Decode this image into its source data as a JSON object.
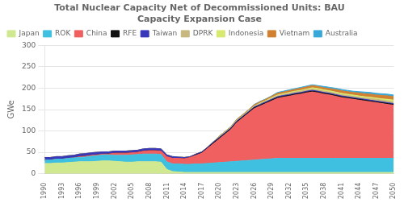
{
  "chart_data": {
    "type": "area",
    "stacked": true,
    "title": "Total Nuclear Capacity Net of Decommissioned Units: BAU\nCapacity Expansion Case",
    "ylabel": "GWe",
    "x": [
      1990,
      1991,
      1992,
      1993,
      1994,
      1995,
      1996,
      1997,
      1998,
      1999,
      2000,
      2001,
      2002,
      2003,
      2004,
      2005,
      2006,
      2007,
      2008,
      2009,
      2010,
      2011,
      2012,
      2013,
      2014,
      2015,
      2016,
      2017,
      2018,
      2019,
      2020,
      2021,
      2022,
      2023,
      2024,
      2025,
      2026,
      2027,
      2028,
      2029,
      2030,
      2031,
      2032,
      2033,
      2034,
      2035,
      2036,
      2037,
      2038,
      2039,
      2040,
      2041,
      2042,
      2043,
      2044,
      2045,
      2046,
      2047,
      2048,
      2049,
      2050
    ],
    "series": [
      {
        "name": "Japan",
        "color": "#d0e890",
        "values": [
          24,
          24,
          25,
          25,
          26,
          27,
          28,
          28,
          28,
          29,
          30,
          30,
          29,
          28,
          27,
          27,
          28,
          28,
          28,
          28,
          27,
          10,
          5,
          4,
          3,
          3,
          3,
          3,
          3,
          3,
          3,
          3,
          3,
          3,
          3,
          3,
          3,
          3,
          3,
          3,
          3,
          3,
          3,
          3,
          3,
          3,
          3,
          3,
          3,
          3,
          3,
          3,
          3,
          3,
          3,
          3,
          3,
          3,
          3,
          3,
          3
        ]
      },
      {
        "name": "ROK",
        "color": "#40c0e0",
        "values": [
          8,
          8,
          9,
          9,
          10,
          10,
          10,
          11,
          13,
          13,
          14,
          14,
          14,
          15,
          16,
          17,
          17,
          18,
          18,
          18,
          18,
          18,
          18,
          19,
          19,
          19,
          20,
          20,
          21,
          22,
          23,
          24,
          25,
          26,
          27,
          28,
          29,
          30,
          31,
          32,
          33,
          33,
          33,
          33,
          33,
          33,
          33,
          33,
          33,
          33,
          33,
          33,
          33,
          33,
          33,
          33,
          33,
          33,
          33,
          33,
          33
        ]
      },
      {
        "name": "China",
        "color": "#f06060",
        "values": [
          0,
          0,
          0,
          0,
          0,
          0,
          2,
          2,
          2,
          2,
          2,
          2,
          5,
          5,
          5,
          5,
          5,
          7,
          8,
          8,
          8,
          12,
          13,
          13,
          13,
          16,
          20,
          25,
          35,
          45,
          55,
          65,
          75,
          90,
          100,
          110,
          120,
          125,
          130,
          135,
          140,
          143,
          145,
          148,
          150,
          153,
          155,
          153,
          150,
          148,
          145,
          142,
          140,
          138,
          136,
          134,
          132,
          130,
          128,
          126,
          124
        ]
      },
      {
        "name": "RFE",
        "color": "#111111",
        "values": [
          0,
          0,
          0,
          0,
          0,
          0,
          0,
          0,
          0,
          0,
          0,
          0,
          0,
          0,
          0,
          0,
          0,
          0,
          0,
          0,
          0,
          0,
          0,
          0,
          0,
          0,
          1,
          1,
          1,
          2,
          2,
          2,
          2,
          2,
          2,
          2,
          2,
          2,
          2,
          2,
          2,
          2,
          2,
          2,
          2,
          2,
          2,
          2,
          2,
          2,
          2,
          2,
          2,
          2,
          2,
          2,
          2,
          2,
          2,
          2,
          2
        ]
      },
      {
        "name": "Taiwan",
        "color": "#3838b8",
        "values": [
          6,
          6,
          6,
          6,
          6,
          6,
          6,
          6,
          6,
          6,
          5,
          5,
          5,
          5,
          5,
          5,
          5,
          5,
          5,
          5,
          5,
          4,
          4,
          3,
          3,
          2,
          2,
          2,
          2,
          2,
          2,
          2,
          2,
          2,
          2,
          2,
          2,
          2,
          2,
          2,
          2,
          2,
          2,
          2,
          2,
          2,
          2,
          2,
          2,
          2,
          2,
          2,
          2,
          2,
          2,
          2,
          2,
          2,
          2,
          2,
          2
        ]
      },
      {
        "name": "DPRK",
        "color": "#c8b880",
        "values": [
          0,
          0,
          0,
          0,
          0,
          0,
          0,
          0,
          0,
          0,
          0,
          0,
          0,
          0,
          0,
          0,
          0,
          0,
          0,
          0,
          0,
          0,
          0,
          0,
          0,
          0,
          0,
          0,
          0,
          1,
          1,
          1,
          1,
          1,
          1,
          1,
          1,
          2,
          2,
          2,
          2,
          2,
          3,
          3,
          3,
          3,
          3,
          3,
          3,
          3,
          3,
          3,
          3,
          3,
          3,
          3,
          4,
          4,
          4,
          4,
          4
        ]
      },
      {
        "name": "Indonesia",
        "color": "#d8e870",
        "values": [
          0,
          0,
          0,
          0,
          0,
          0,
          0,
          0,
          0,
          0,
          0,
          0,
          0,
          0,
          0,
          0,
          0,
          0,
          0,
          0,
          0,
          0,
          0,
          0,
          0,
          0,
          0,
          0,
          0,
          0,
          1,
          1,
          1,
          1,
          1,
          1,
          1,
          1,
          1,
          2,
          2,
          2,
          2,
          2,
          2,
          2,
          3,
          3,
          3,
          3,
          3,
          3,
          3,
          3,
          3,
          3,
          3,
          3,
          3,
          4,
          4
        ]
      },
      {
        "name": "Vietnam",
        "color": "#d08030",
        "values": [
          0,
          0,
          0,
          0,
          0,
          0,
          0,
          0,
          0,
          0,
          0,
          0,
          0,
          0,
          0,
          0,
          0,
          0,
          0,
          0,
          0,
          0,
          0,
          0,
          0,
          0,
          0,
          0,
          0,
          0,
          1,
          1,
          1,
          2,
          2,
          2,
          3,
          3,
          3,
          3,
          4,
          4,
          4,
          4,
          5,
          5,
          5,
          5,
          5,
          5,
          6,
          6,
          6,
          6,
          7,
          7,
          7,
          7,
          8,
          8,
          8
        ]
      },
      {
        "name": "Australia",
        "color": "#38a8d8",
        "values": [
          0,
          0,
          0,
          0,
          0,
          0,
          0,
          0,
          0,
          0,
          0,
          0,
          0,
          0,
          0,
          0,
          0,
          0,
          0,
          0,
          0,
          0,
          0,
          0,
          0,
          0,
          0,
          0,
          0,
          0,
          0,
          0,
          0,
          0,
          0,
          0,
          1,
          1,
          1,
          1,
          2,
          2,
          2,
          2,
          2,
          2,
          2,
          2,
          3,
          3,
          3,
          3,
          3,
          3,
          3,
          4,
          4,
          4,
          4,
          4,
          4
        ]
      }
    ],
    "xlim": [
      1990,
      2050
    ],
    "xticks": [
      1990,
      1993,
      1996,
      1999,
      2002,
      2005,
      2008,
      2011,
      2014,
      2017,
      2020,
      2023,
      2026,
      2029,
      2032,
      2035,
      2038,
      2041,
      2044,
      2047,
      2050
    ],
    "ylim": [
      0,
      300
    ],
    "yticks": [
      0,
      50,
      100,
      150,
      200,
      250,
      300
    ],
    "grid": "y",
    "legend": "upper left"
  }
}
